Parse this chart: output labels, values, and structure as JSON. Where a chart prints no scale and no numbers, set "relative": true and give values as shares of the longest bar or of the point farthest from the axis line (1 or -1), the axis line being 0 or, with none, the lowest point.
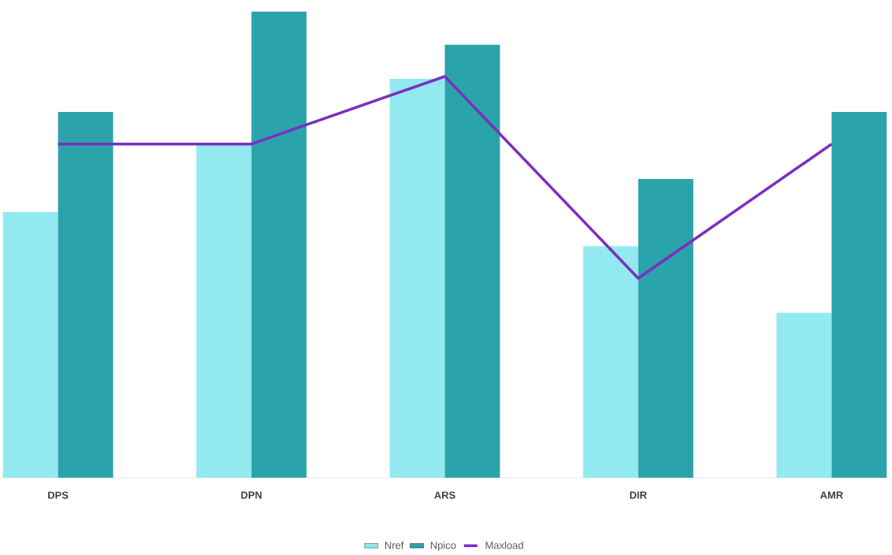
{
  "chart_data": {
    "type": "bar",
    "relative": true,
    "categories": [
      "DPS",
      "DPN",
      "ARS",
      "DIR",
      "AMR"
    ],
    "series": [
      {
        "name": "Nref",
        "color": "#92eaf0",
        "values": [
          0.57,
          0.716,
          0.856,
          0.497,
          0.354
        ]
      },
      {
        "name": "Npico",
        "color": "#2aa3ab",
        "values": [
          0.785,
          1,
          0.929,
          0.641,
          0.785
        ]
      },
      {
        "name": "Maxload",
        "type": "line",
        "color": "#7b2fbf",
        "values": [
          0.716,
          0.716,
          0.861,
          0.428,
          0.716
        ]
      }
    ],
    "legend": "bottom",
    "grid": false,
    "marker": "none",
    "line_style": "solid"
  }
}
